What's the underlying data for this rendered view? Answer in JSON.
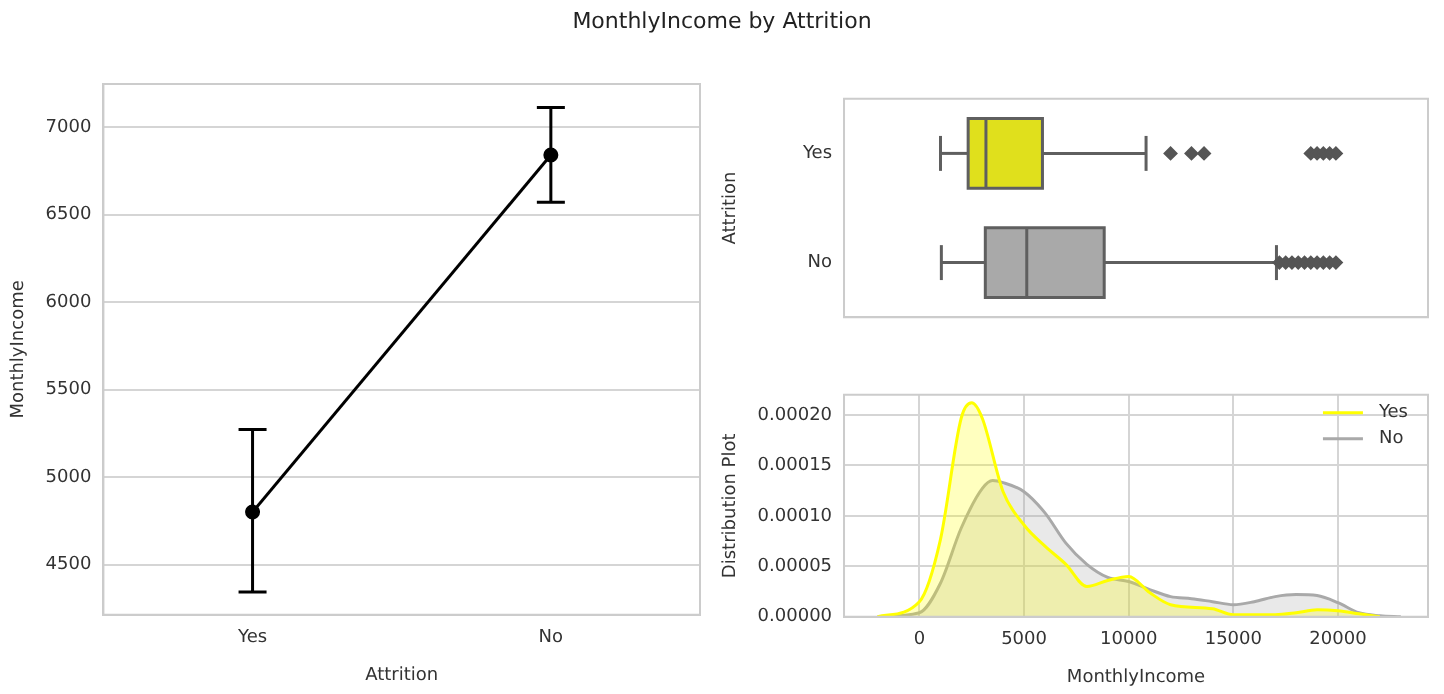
{
  "chart_data": [
    {
      "type": "line",
      "title": "MonthlyIncome by Attrition",
      "categories": [
        "Yes",
        "No"
      ],
      "xlabel": "Attrition",
      "ylabel": "MonthlyIncome",
      "ylim": [
        4213,
        7246
      ],
      "yticks": [
        4500,
        5000,
        5500,
        6000,
        6500,
        7000
      ],
      "grid": "y",
      "marker": "circle",
      "series": [
        {
          "color": "#000000",
          "values": [
            4800,
            6840
          ],
          "errors": [
            [
              4343,
              5272
            ],
            [
              6571,
              7112
            ]
          ]
        }
      ]
    },
    {
      "type": "box",
      "orientation": "horizontal",
      "categories": [
        "Yes",
        "No"
      ],
      "ylabel": "Attrition",
      "xlim": [
        -3600,
        24300
      ],
      "tick_labels": "y",
      "marker": "diamond",
      "series": [
        {
          "color": "#e0e01c",
          "boxes": [
            {
              "low": 1009,
              "q1": 2330,
              "median": 3180,
              "q3": 5880,
              "high": 10830,
              "outliers": [
                12000,
                13000,
                13600,
                18700,
                19000,
                19300,
                19600,
                19900
              ]
            },
            null
          ]
        },
        {
          "color": "#a9a9a9",
          "boxes": [
            null,
            {
              "low": 1050,
              "q1": 3150,
              "median": 5130,
              "q3": 8830,
              "high": 17060,
              "outliers": [
                17200,
                17500,
                17800,
                18100,
                18400,
                18700,
                19000,
                19300,
                19600,
                19900
              ]
            }
          ]
        }
      ]
    },
    {
      "type": "area",
      "xlabel": "MonthlyIncome",
      "ylabel": "Distribution Plot",
      "xlim": [
        -3600,
        24300
      ],
      "xticks": [
        0,
        5000,
        10000,
        15000,
        20000
      ],
      "ylim": [
        0,
        0.00022
      ],
      "yticks": [
        {
          "value": 0,
          "label": "0.00000"
        },
        {
          "value": 5e-05,
          "label": "0.00005"
        },
        {
          "value": 0.0001,
          "label": "0.00010"
        },
        {
          "value": 0.00015,
          "label": "0.00015"
        },
        {
          "value": 0.0002,
          "label": "0.00020"
        }
      ],
      "grid": true,
      "legend": "top right",
      "series": [
        {
          "name": "Yes",
          "color": "#ffff00",
          "x": [
            -2000,
            0,
            1000,
            2000,
            2500,
            3000,
            4000,
            5000,
            6000,
            7000,
            8000,
            9000,
            10000,
            11000,
            12000,
            14000,
            15000,
            17000,
            18000,
            19000,
            20000,
            21000,
            22000
          ],
          "values": [
            0,
            1.5e-05,
            7.6e-05,
            0.000197,
            0.000212,
            0.000197,
            0.000124,
            9.1e-05,
            7e-05,
            5.2e-05,
            3e-05,
            3.6e-05,
            4e-05,
            2.4e-05,
            1.2e-05,
            8e-06,
            2e-06,
            2e-06,
            4e-06,
            7e-06,
            6e-06,
            3e-06,
            0
          ]
        },
        {
          "name": "No",
          "color": "#a9a9a9",
          "x": [
            -2000,
            0,
            1000,
            2000,
            3000,
            3500,
            4000,
            5000,
            6000,
            7000,
            8000,
            9000,
            10000,
            11000,
            12000,
            13000,
            14000,
            15000,
            16000,
            17000,
            18000,
            19000,
            20000,
            21000,
            22000,
            23000
          ],
          "values": [
            0,
            4e-06,
            3.3e-05,
            8.8e-05,
            0.000127,
            0.000135,
            0.000133,
            0.000124,
            0.000103,
            7.3e-05,
            5.2e-05,
            3.9e-05,
            3.5e-05,
            2.7e-05,
            2e-05,
            1.8e-05,
            1.5e-05,
            1.2e-05,
            1.5e-05,
            2e-05,
            2.2e-05,
            2.1e-05,
            1.4e-05,
            4e-06,
            1e-06,
            0
          ]
        }
      ]
    }
  ]
}
